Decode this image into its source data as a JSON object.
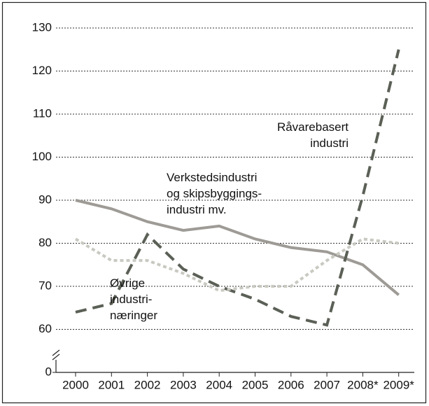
{
  "chart_data": {
    "type": "line",
    "categories": [
      "2000",
      "2001",
      "2002",
      "2003",
      "2004",
      "2005",
      "2006",
      "2007",
      "2008*",
      "2009*"
    ],
    "series": [
      {
        "name": "Verkstedsindustri\nog skipsbyggings-\nindustri mv.",
        "color": "#9e9b96",
        "style": "solid",
        "values": [
          90,
          88,
          85,
          83,
          84,
          81,
          79,
          78,
          75,
          68
        ]
      },
      {
        "name": "Råvarebasert\nindustri",
        "color": "#5b6056",
        "style": "dashed",
        "values": [
          64,
          66,
          82,
          74,
          70,
          67,
          63,
          61,
          91,
          125
        ]
      },
      {
        "name": "Øvrige\nindustri-\nnæringer",
        "color": "#c9c9c2",
        "style": "dotted",
        "values": [
          81,
          76,
          76,
          73,
          69,
          70,
          70,
          76,
          81,
          80
        ]
      }
    ],
    "ylim": [
      0,
      130
    ],
    "yticks": [
      0,
      60,
      70,
      80,
      90,
      100,
      110,
      120,
      130
    ],
    "axis_break": [
      0,
      60
    ],
    "grid": true
  }
}
